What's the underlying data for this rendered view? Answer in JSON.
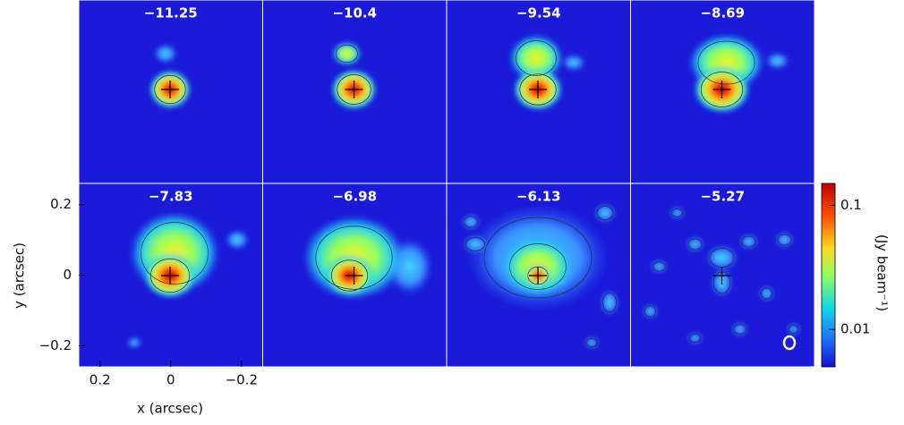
{
  "chart_data": {
    "type": "channel-map",
    "panel_labels": [
      "−11.25",
      "−10.4",
      "−9.54",
      "−8.69",
      "−7.83",
      "−6.98",
      "−6.13",
      "−5.27"
    ],
    "x_label": "x (arcsec)",
    "y_label": "y (arcsec)",
    "xlim": [
      0.26,
      -0.26
    ],
    "xticks": [
      0.2,
      0,
      {
        "value": -0.2,
        "label": "−0.2"
      }
    ],
    "ylim": [
      -0.26,
      0.26
    ],
    "yticks": [
      0.2,
      0,
      {
        "value": -0.2,
        "label": "−0.2"
      }
    ],
    "colorbar": {
      "label": "(Jy beam⁻¹)",
      "scale": "log",
      "lim": [
        0.005,
        0.15
      ],
      "ticks": [
        0.01,
        0.1
      ]
    }
  }
}
